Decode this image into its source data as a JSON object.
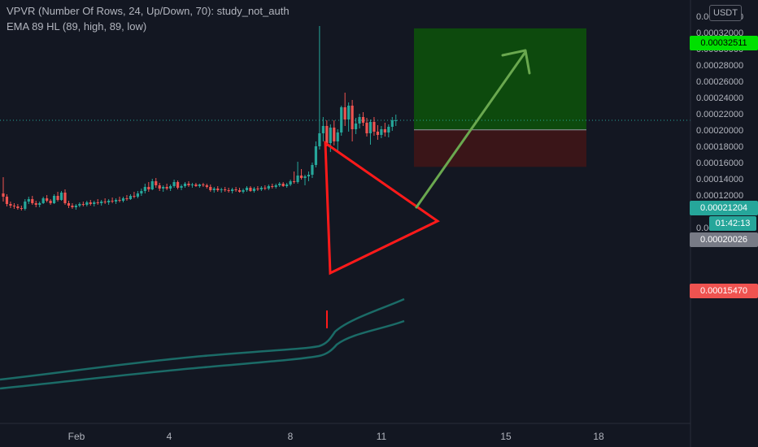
{
  "legend": {
    "indicator1": "VPVR (Number Of Rows, 24, Up/Down, 70): study_not_auth",
    "indicator2": "EMA 89 HL (89, high, 89, low)"
  },
  "currency_label": "USDT",
  "price_axis": {
    "ticks": [
      "0.00034000",
      "0.00032000",
      "0.00030000",
      "0.00028000",
      "0.00026000",
      "0.00024000",
      "0.00022000",
      "0.00020000",
      "0.00018000",
      "0.00016000",
      "0.00014000",
      "0.00012000",
      "0.00010000",
      "0.00008000"
    ],
    "tick_values": [
      0.00034,
      0.00032,
      0.0003,
      0.00028,
      0.00026,
      0.00024,
      0.00022,
      0.0002,
      0.00018,
      0.00016,
      0.00014,
      0.00012,
      0.0001,
      8e-05
    ]
  },
  "time_axis": {
    "ticks": [
      "Feb",
      "4",
      "8",
      "11",
      "15",
      "18"
    ]
  },
  "price_tags": {
    "target": "0.00032511",
    "current": "0.00021204",
    "countdown": "01:42:13",
    "entry": "0.00020026",
    "stop": "0.00015470"
  },
  "colors": {
    "background": "#131722",
    "up": "#26a69a",
    "down": "#ef5350",
    "profit_zone": "#0d4a0d",
    "loss_zone": "#3a1518",
    "ema": "#1b6b67",
    "triangle": "#ff1a1a",
    "arrow": "#6aa84f",
    "target_tag": "#00e000",
    "current_tag": "#26a69a",
    "entry_tag": "#787b86",
    "stop_tag": "#ef5350"
  },
  "chart_data": {
    "type": "candlestick",
    "ylim": [
      6e-05,
      0.000345
    ],
    "position": {
      "entry": 0.00020026,
      "target": 0.00032511,
      "stop": 0.0001547,
      "current": 0.00021204
    },
    "candles": [
      {
        "o": 0.000122,
        "h": 0.000142,
        "l": 0.000112,
        "c": 0.000118
      },
      {
        "o": 0.000118,
        "h": 0.000121,
        "l": 0.000106,
        "c": 0.000109
      },
      {
        "o": 0.000109,
        "h": 0.000112,
        "l": 0.000104,
        "c": 0.000107
      },
      {
        "o": 0.000107,
        "h": 0.00011,
        "l": 0.000103,
        "c": 0.000106
      },
      {
        "o": 0.000106,
        "h": 0.000109,
        "l": 0.000102,
        "c": 0.000104
      },
      {
        "o": 0.000104,
        "h": 0.000107,
        "l": 0.000101,
        "c": 0.000103
      },
      {
        "o": 0.000103,
        "h": 0.000115,
        "l": 0.000101,
        "c": 0.000112
      },
      {
        "o": 0.000112,
        "h": 0.000118,
        "l": 0.000109,
        "c": 0.000115
      },
      {
        "o": 0.000115,
        "h": 0.000119,
        "l": 0.000108,
        "c": 0.00011
      },
      {
        "o": 0.00011,
        "h": 0.000113,
        "l": 0.000105,
        "c": 0.000108
      },
      {
        "o": 0.000108,
        "h": 0.000112,
        "l": 0.000105,
        "c": 0.00011
      },
      {
        "o": 0.00011,
        "h": 0.000118,
        "l": 0.000109,
        "c": 0.000116
      },
      {
        "o": 0.000116,
        "h": 0.00012,
        "l": 0.000111,
        "c": 0.000113
      },
      {
        "o": 0.000113,
        "h": 0.000115,
        "l": 0.000108,
        "c": 0.00011
      },
      {
        "o": 0.00011,
        "h": 0.000121,
        "l": 0.000109,
        "c": 0.000119
      },
      {
        "o": 0.000119,
        "h": 0.000124,
        "l": 0.000112,
        "c": 0.000114
      },
      {
        "o": 0.000114,
        "h": 0.000125,
        "l": 0.000113,
        "c": 0.000123
      },
      {
        "o": 0.000123,
        "h": 0.000127,
        "l": 0.000108,
        "c": 0.00011
      },
      {
        "o": 0.00011,
        "h": 0.000113,
        "l": 0.000104,
        "c": 0.000107
      },
      {
        "o": 0.000107,
        "h": 0.00011,
        "l": 0.000103,
        "c": 0.000105
      },
      {
        "o": 0.000105,
        "h": 0.000109,
        "l": 0.000102,
        "c": 0.000107
      },
      {
        "o": 0.000107,
        "h": 0.000111,
        "l": 0.000105,
        "c": 0.000109
      },
      {
        "o": 0.000109,
        "h": 0.000112,
        "l": 0.000106,
        "c": 0.000108
      },
      {
        "o": 0.000108,
        "h": 0.000113,
        "l": 0.000106,
        "c": 0.000111
      },
      {
        "o": 0.000111,
        "h": 0.000114,
        "l": 0.000107,
        "c": 0.000109
      },
      {
        "o": 0.000109,
        "h": 0.000113,
        "l": 0.000106,
        "c": 0.000111
      },
      {
        "o": 0.000111,
        "h": 0.000115,
        "l": 0.000108,
        "c": 0.00011
      },
      {
        "o": 0.00011,
        "h": 0.000114,
        "l": 0.000107,
        "c": 0.000112
      },
      {
        "o": 0.000112,
        "h": 0.000116,
        "l": 0.000109,
        "c": 0.000111
      },
      {
        "o": 0.000111,
        "h": 0.000115,
        "l": 0.000108,
        "c": 0.000113
      },
      {
        "o": 0.000113,
        "h": 0.000117,
        "l": 0.00011,
        "c": 0.000112
      },
      {
        "o": 0.000112,
        "h": 0.000116,
        "l": 0.000109,
        "c": 0.000114
      },
      {
        "o": 0.000114,
        "h": 0.000118,
        "l": 0.000111,
        "c": 0.000113
      },
      {
        "o": 0.000113,
        "h": 0.000118,
        "l": 0.000111,
        "c": 0.000116
      },
      {
        "o": 0.000116,
        "h": 0.00012,
        "l": 0.000113,
        "c": 0.000115
      },
      {
        "o": 0.000115,
        "h": 0.000121,
        "l": 0.000114,
        "c": 0.000119
      },
      {
        "o": 0.000119,
        "h": 0.000124,
        "l": 0.000116,
        "c": 0.000118
      },
      {
        "o": 0.000118,
        "h": 0.000125,
        "l": 0.000116,
        "c": 0.000122
      },
      {
        "o": 0.000122,
        "h": 0.000128,
        "l": 0.000119,
        "c": 0.000125
      },
      {
        "o": 0.000125,
        "h": 0.000134,
        "l": 0.000122,
        "c": 0.00013
      },
      {
        "o": 0.00013,
        "h": 0.000136,
        "l": 0.000124,
        "c": 0.000127
      },
      {
        "o": 0.000127,
        "h": 0.00014,
        "l": 0.000126,
        "c": 0.000137
      },
      {
        "o": 0.000137,
        "h": 0.000141,
        "l": 0.000129,
        "c": 0.000132
      },
      {
        "o": 0.000132,
        "h": 0.000135,
        "l": 0.000125,
        "c": 0.000128
      },
      {
        "o": 0.000128,
        "h": 0.000132,
        "l": 0.000124,
        "c": 0.00013
      },
      {
        "o": 0.00013,
        "h": 0.000134,
        "l": 0.000126,
        "c": 0.000128
      },
      {
        "o": 0.000128,
        "h": 0.000133,
        "l": 0.000125,
        "c": 0.000131
      },
      {
        "o": 0.000131,
        "h": 0.000139,
        "l": 0.000129,
        "c": 0.000136
      },
      {
        "o": 0.000136,
        "h": 0.000138,
        "l": 0.000127,
        "c": 0.000129
      },
      {
        "o": 0.000129,
        "h": 0.000133,
        "l": 0.000126,
        "c": 0.000131
      },
      {
        "o": 0.000131,
        "h": 0.000136,
        "l": 0.000129,
        "c": 0.000134
      },
      {
        "o": 0.000134,
        "h": 0.000137,
        "l": 0.00013,
        "c": 0.000132
      },
      {
        "o": 0.000132,
        "h": 0.000135,
        "l": 0.000129,
        "c": 0.000133
      },
      {
        "o": 0.000133,
        "h": 0.000135,
        "l": 0.00013,
        "c": 0.000131
      },
      {
        "o": 0.000131,
        "h": 0.000134,
        "l": 0.000129,
        "c": 0.000133
      },
      {
        "o": 0.000133,
        "h": 0.000135,
        "l": 0.00013,
        "c": 0.000132
      },
      {
        "o": 0.000132,
        "h": 0.000134,
        "l": 0.000128,
        "c": 0.00013
      },
      {
        "o": 0.00013,
        "h": 0.000133,
        "l": 0.000124,
        "c": 0.000126
      },
      {
        "o": 0.000126,
        "h": 0.00013,
        "l": 0.000123,
        "c": 0.000128
      },
      {
        "o": 0.000128,
        "h": 0.000131,
        "l": 0.000124,
        "c": 0.000126
      },
      {
        "o": 0.000126,
        "h": 0.000129,
        "l": 0.000123,
        "c": 0.000127
      },
      {
        "o": 0.000127,
        "h": 0.00013,
        "l": 0.000124,
        "c": 0.000126
      },
      {
        "o": 0.000126,
        "h": 0.000129,
        "l": 0.000123,
        "c": 0.000125
      },
      {
        "o": 0.000125,
        "h": 0.000129,
        "l": 0.000122,
        "c": 0.000127
      },
      {
        "o": 0.000127,
        "h": 0.00013,
        "l": 0.000124,
        "c": 0.000126
      },
      {
        "o": 0.000126,
        "h": 0.000129,
        "l": 0.000123,
        "c": 0.000124
      },
      {
        "o": 0.000124,
        "h": 0.000128,
        "l": 0.000122,
        "c": 0.000126
      },
      {
        "o": 0.000126,
        "h": 0.000131,
        "l": 0.000124,
        "c": 0.000129
      },
      {
        "o": 0.000129,
        "h": 0.000131,
        "l": 0.000124,
        "c": 0.000125
      },
      {
        "o": 0.000125,
        "h": 0.00013,
        "l": 0.000123,
        "c": 0.000128
      },
      {
        "o": 0.000128,
        "h": 0.000131,
        "l": 0.000125,
        "c": 0.000127
      },
      {
        "o": 0.000127,
        "h": 0.000131,
        "l": 0.000125,
        "c": 0.000129
      },
      {
        "o": 0.000129,
        "h": 0.000132,
        "l": 0.000126,
        "c": 0.000128
      },
      {
        "o": 0.000128,
        "h": 0.000133,
        "l": 0.000126,
        "c": 0.000131
      },
      {
        "o": 0.000131,
        "h": 0.000134,
        "l": 0.000128,
        "c": 0.00013
      },
      {
        "o": 0.00013,
        "h": 0.000134,
        "l": 0.000128,
        "c": 0.000132
      },
      {
        "o": 0.000132,
        "h": 0.000136,
        "l": 0.00013,
        "c": 0.000134
      },
      {
        "o": 0.000134,
        "h": 0.000136,
        "l": 0.00013,
        "c": 0.000131
      },
      {
        "o": 0.000131,
        "h": 0.000135,
        "l": 0.000129,
        "c": 0.000133
      },
      {
        "o": 0.000133,
        "h": 0.000139,
        "l": 0.000131,
        "c": 0.000137
      },
      {
        "o": 0.000137,
        "h": 0.000149,
        "l": 0.000134,
        "c": 0.000136
      },
      {
        "o": 0.000136,
        "h": 0.000161,
        "l": 0.000134,
        "c": 0.000144
      },
      {
        "o": 0.000144,
        "h": 0.000152,
        "l": 0.000139,
        "c": 0.000141
      },
      {
        "o": 0.000141,
        "h": 0.000145,
        "l": 0.000132,
        "c": 0.000143
      },
      {
        "o": 0.000143,
        "h": 0.000149,
        "l": 0.000137,
        "c": 0.000145
      },
      {
        "o": 0.000145,
        "h": 0.00016,
        "l": 0.000141,
        "c": 0.000157
      },
      {
        "o": 0.000157,
        "h": 0.000186,
        "l": 0.000154,
        "c": 0.00018
      },
      {
        "o": 0.00018,
        "h": 0.000328,
        "l": 0.000176,
        "c": 0.000196
      },
      {
        "o": 0.000196,
        "h": 0.000216,
        "l": 0.000186,
        "c": 0.000205
      },
      {
        "o": 0.000205,
        "h": 0.000212,
        "l": 0.00018,
        "c": 0.000184
      },
      {
        "o": 0.000184,
        "h": 0.000207,
        "l": 0.000173,
        "c": 0.000203
      },
      {
        "o": 0.000203,
        "h": 0.000212,
        "l": 0.000181,
        "c": 0.000186
      },
      {
        "o": 0.000186,
        "h": 0.000201,
        "l": 0.000174,
        "c": 0.000197
      },
      {
        "o": 0.000197,
        "h": 0.00023,
        "l": 0.000193,
        "c": 0.000228
      },
      {
        "o": 0.000228,
        "h": 0.000246,
        "l": 0.000205,
        "c": 0.000213
      },
      {
        "o": 0.000213,
        "h": 0.000234,
        "l": 0.000198,
        "c": 0.00023
      },
      {
        "o": 0.00023,
        "h": 0.000237,
        "l": 0.000186,
        "c": 0.000201
      },
      {
        "o": 0.000201,
        "h": 0.000215,
        "l": 0.000195,
        "c": 0.000208
      },
      {
        "o": 0.000208,
        "h": 0.00022,
        "l": 0.000202,
        "c": 0.000216
      },
      {
        "o": 0.000216,
        "h": 0.000222,
        "l": 0.000205,
        "c": 0.000209
      },
      {
        "o": 0.000209,
        "h": 0.000215,
        "l": 0.000192,
        "c": 0.000196
      },
      {
        "o": 0.000196,
        "h": 0.000213,
        "l": 0.000182,
        "c": 0.00021
      },
      {
        "o": 0.00021,
        "h": 0.000216,
        "l": 0.000193,
        "c": 0.000198
      },
      {
        "o": 0.000198,
        "h": 0.000206,
        "l": 0.000188,
        "c": 0.000194
      },
      {
        "o": 0.000194,
        "h": 0.000205,
        "l": 0.00019,
        "c": 0.000201
      },
      {
        "o": 0.000201,
        "h": 0.000209,
        "l": 0.000192,
        "c": 0.000197
      },
      {
        "o": 0.000197,
        "h": 0.000207,
        "l": 0.000191,
        "c": 0.000204
      },
      {
        "o": 0.000204,
        "h": 0.000216,
        "l": 0.000199,
        "c": 0.000212
      },
      {
        "o": 0.000212,
        "h": 0.000219,
        "l": 0.000205,
        "c": 0.000212
      }
    ]
  }
}
